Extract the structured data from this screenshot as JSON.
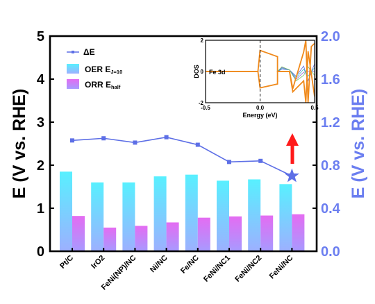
{
  "colors": {
    "bar_oer_top": "#58f0ff",
    "bar_oer_bottom": "#9db0ff",
    "bar_orr_top": "#e46cf2",
    "bar_orr_bottom": "#a79aff",
    "delta_line": "#5d6fe6",
    "right_axis": "#6b7ef0",
    "arrow": "#ff1a1a",
    "inset_orange": "#f08a1c"
  },
  "chart_data": [
    {
      "type": "bar",
      "categories": [
        "Pt/C",
        "IrO2",
        "FeNi(NP)/NC",
        "Ni/NC",
        "Fe/NC",
        "FeNi/NC1",
        "FeNi/NC2",
        "FeNi/NC"
      ],
      "series": [
        {
          "name": "OER E",
          "name_sub": "J=10",
          "axis": "left",
          "values": [
            1.85,
            1.6,
            1.6,
            1.74,
            1.78,
            1.64,
            1.67,
            1.56
          ]
        },
        {
          "name": "ORR E",
          "name_sub": "half",
          "axis": "left",
          "values": [
            0.82,
            0.55,
            0.59,
            0.67,
            0.78,
            0.81,
            0.83,
            0.86
          ]
        },
        {
          "name": "ΔE",
          "axis": "right",
          "type": "line",
          "values": [
            1.03,
            1.05,
            1.01,
            1.06,
            0.99,
            0.83,
            0.84,
            0.7
          ]
        }
      ],
      "ylabel": "E (V vs. RHE)",
      "ylabel_right": "E (V vs. RHE)",
      "ylim": [
        0,
        5
      ],
      "ylim_right": [
        0.0,
        2.0
      ],
      "yticks": [
        "0",
        "1",
        "2",
        "3",
        "4",
        "5"
      ],
      "yticks_right": [
        "0.0",
        "0.4",
        "0.8",
        "1.2",
        "1.6",
        "2.0"
      ],
      "legend": [
        "ΔE",
        "OER E",
        "ORR E"
      ],
      "legend_position": "top-left"
    },
    {
      "type": "line",
      "xlabel": "Energy (eV)",
      "ylabel": "DOS",
      "annotation": "Fe 3d",
      "xlim": [
        -0.5,
        0.5
      ],
      "ylim": [
        -2,
        2
      ],
      "xticks": [
        "-0.5",
        "0.0",
        "0.5"
      ],
      "yticks": [
        "-2",
        "0",
        "2"
      ],
      "series": [
        {
          "name": "Fe 3d",
          "color": "#f08a1c",
          "x": [
            -0.5,
            -0.02,
            0.0,
            0.0,
            0.16,
            0.16,
            0.27,
            0.3,
            0.4,
            0.42,
            0.44,
            0.47,
            0.5
          ],
          "y": [
            0.0,
            0.0,
            1.35,
            1.35,
            0.95,
            0.0,
            0.0,
            -1.1,
            1.25,
            2.0,
            -2.0,
            1.6,
            1.8
          ]
        },
        {
          "name": "Fe 3d",
          "color": "#f08a1c",
          "x": [
            -0.5,
            -0.02,
            0.0,
            0.0,
            0.16,
            0.16,
            0.27,
            0.3,
            0.4,
            0.42,
            0.44,
            0.5
          ],
          "y": [
            0.0,
            0.0,
            -1.05,
            -1.05,
            -0.8,
            0.0,
            0.0,
            -1.3,
            -0.6,
            -2.0,
            1.3,
            -1.6
          ]
        }
      ]
    }
  ]
}
